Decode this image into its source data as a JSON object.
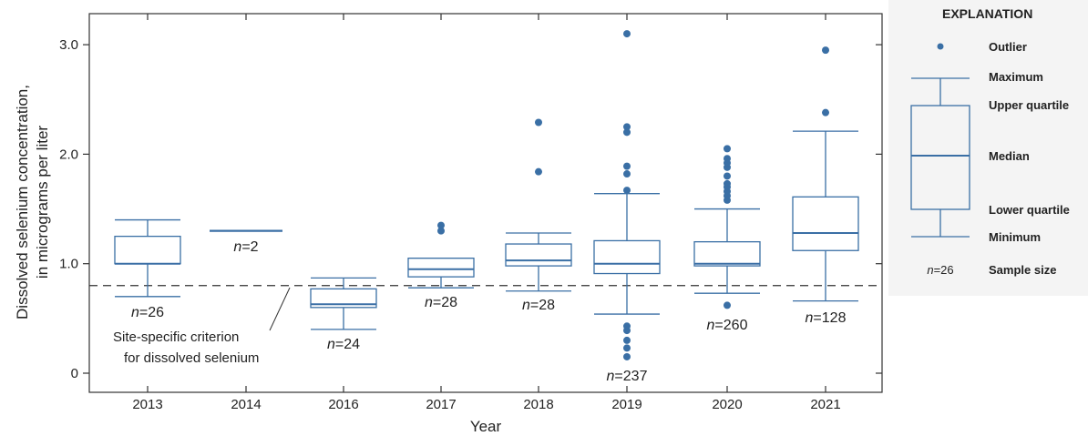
{
  "chart_data": {
    "type": "box",
    "xlabel": "Year",
    "ylabel_line1": "Dissolved selenium concentration,",
    "ylabel_line2": "in micrograms per liter",
    "ylim": [
      -0.17,
      3.2
    ],
    "yticks": [
      {
        "value": 0,
        "label": "0"
      },
      {
        "value": 1.0,
        "label": "1.0"
      },
      {
        "value": 2.0,
        "label": "2.0"
      },
      {
        "value": 3.0,
        "label": "3.0"
      }
    ],
    "criterion": {
      "value": 0.8,
      "label_line1": "Site-specific criterion",
      "label_line2": "for dissolved selenium"
    },
    "categories": [
      "2013",
      "2014",
      "2016",
      "2017",
      "2018",
      "2019",
      "2020",
      "2021"
    ],
    "boxes": [
      {
        "year": "2013",
        "min": 0.7,
        "q1": 1.0,
        "median": 1.0,
        "q3": 1.25,
        "max": 1.4,
        "outliers": [],
        "n_prefix": "n",
        "n_text": "=26"
      },
      {
        "year": "2014",
        "min": 1.3,
        "q1": 1.3,
        "median": 1.3,
        "q3": 1.3,
        "max": 1.3,
        "outliers": [],
        "n_prefix": "n",
        "n_text": "=2"
      },
      {
        "year": "2016",
        "min": 0.4,
        "q1": 0.6,
        "median": 0.63,
        "q3": 0.77,
        "max": 0.87,
        "outliers": [],
        "n_prefix": "n",
        "n_text": "=24"
      },
      {
        "year": "2017",
        "min": 0.78,
        "q1": 0.88,
        "median": 0.95,
        "q3": 1.05,
        "max": 1.05,
        "outliers": [
          1.3,
          1.35
        ],
        "n_prefix": "n",
        "n_text": "=28"
      },
      {
        "year": "2018",
        "min": 0.75,
        "q1": 0.98,
        "median": 1.03,
        "q3": 1.18,
        "max": 1.28,
        "outliers": [
          1.84,
          2.29
        ],
        "n_prefix": "n",
        "n_text": "=28"
      },
      {
        "year": "2019",
        "min": 0.54,
        "q1": 0.91,
        "median": 1.0,
        "q3": 1.21,
        "max": 1.64,
        "outliers": [
          0.15,
          0.23,
          0.3,
          0.39,
          0.43,
          1.67,
          1.82,
          1.89,
          2.2,
          2.25,
          3.1
        ],
        "n_prefix": "n",
        "n_text": "=237"
      },
      {
        "year": "2020",
        "min": 0.73,
        "q1": 0.98,
        "median": 1.0,
        "q3": 1.2,
        "max": 1.5,
        "outliers": [
          0.62,
          1.58,
          1.62,
          1.66,
          1.7,
          1.73,
          1.8,
          1.88,
          1.92,
          1.96,
          2.05
        ],
        "n_prefix": "n",
        "n_text": "=260"
      },
      {
        "year": "2021",
        "min": 0.66,
        "q1": 1.12,
        "median": 1.28,
        "q3": 1.61,
        "max": 2.21,
        "outliers": [
          2.38,
          2.95
        ],
        "n_prefix": "n",
        "n_text": "=128"
      }
    ],
    "colors": {
      "box": "#3a6fa5",
      "point": "#3a6fa5",
      "axis": "#333333",
      "criterion": "#333333"
    },
    "legend": {
      "title": "EXPLANATION",
      "placement": "right",
      "items": {
        "outlier": "Outlier",
        "maximum": "Maximum",
        "upper_quartile": "Upper quartile",
        "median": "Median",
        "lower_quartile": "Lower quartile",
        "minimum": "Minimum",
        "sample_size_example_prefix": "n",
        "sample_size_example_text": "=26",
        "sample_size": "Sample size"
      }
    }
  }
}
